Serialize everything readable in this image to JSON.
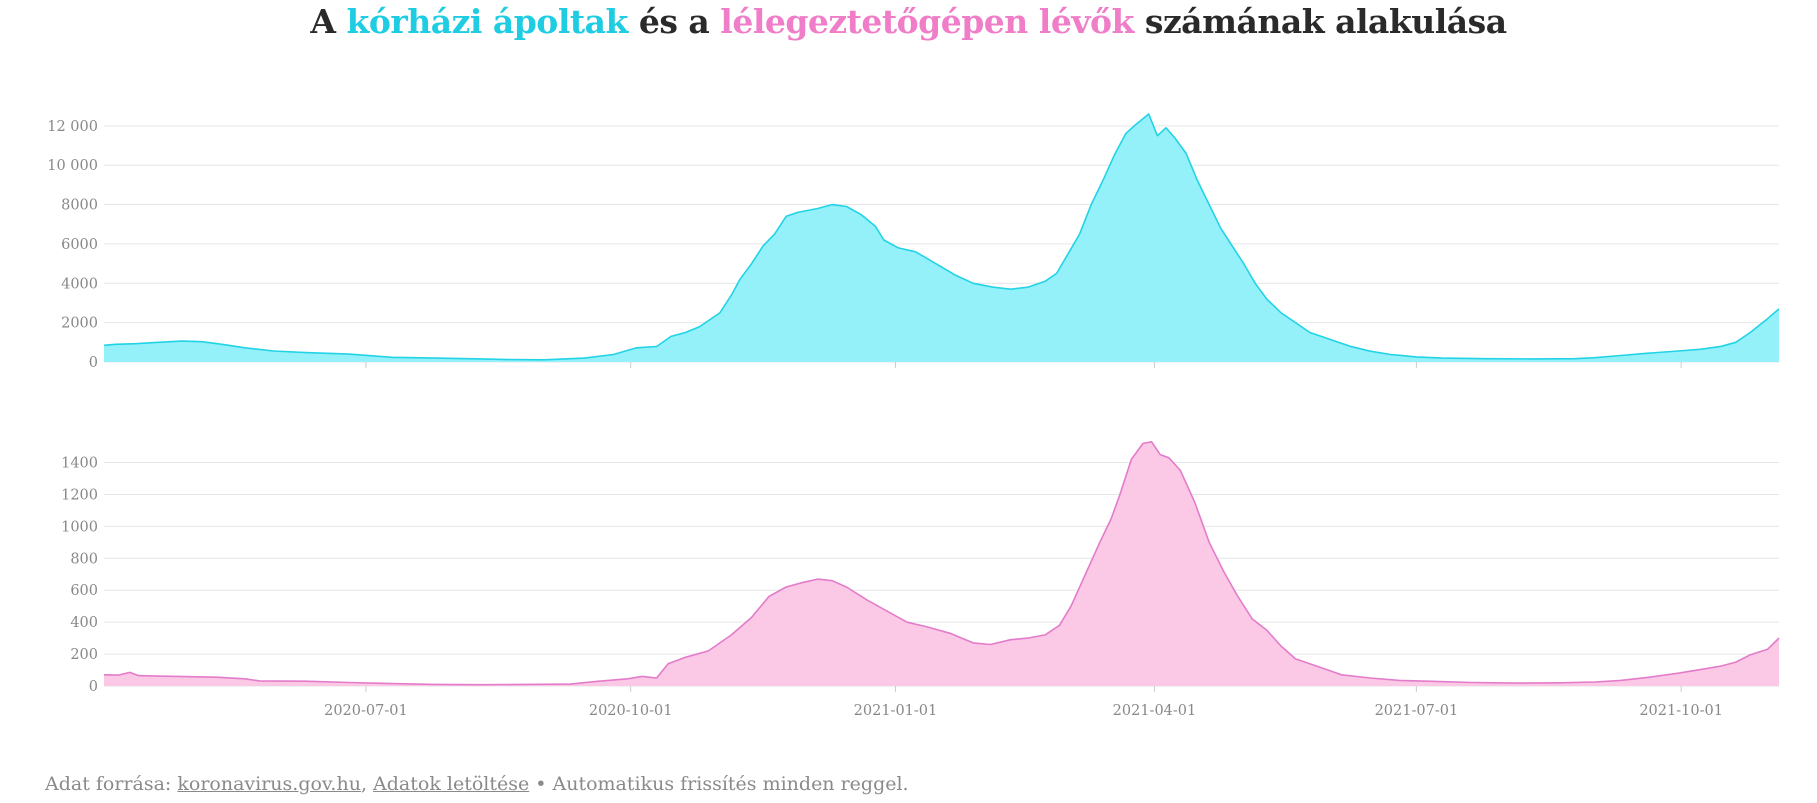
{
  "title": {
    "part1": "A ",
    "highlight1": "kórházi ápoltak",
    "part2": " és a ",
    "highlight2": "lélegeztetőgépen lévők",
    "part3": " számának alakulása"
  },
  "colors": {
    "hospital_line": "#22d3e6",
    "hospital_fill": "#94f1fa",
    "ventilator_line": "#e37cca",
    "ventilator_fill": "#fbc8e6",
    "grid": "#e6e6e6",
    "tick_text": "#888888"
  },
  "footer": {
    "prefix": "Adat forrása: ",
    "source_link": "koronavirus.gov.hu",
    "separator": ", ",
    "download_link": "Adatok letöltése",
    "suffix": " • Automatikus frissítés minden reggel."
  },
  "chart_data": [
    {
      "type": "area",
      "series": [
        {
          "name": "kórházi ápoltak",
          "points": [
            [
              "2020-04-01",
              850
            ],
            [
              "2020-04-05",
              900
            ],
            [
              "2020-04-12",
              930
            ],
            [
              "2020-04-20",
              1000
            ],
            [
              "2020-04-28",
              1060
            ],
            [
              "2020-05-05",
              1030
            ],
            [
              "2020-05-12",
              900
            ],
            [
              "2020-05-20",
              720
            ],
            [
              "2020-05-30",
              560
            ],
            [
              "2020-06-10",
              480
            ],
            [
              "2020-06-25",
              400
            ],
            [
              "2020-07-10",
              240
            ],
            [
              "2020-07-25",
              200
            ],
            [
              "2020-08-10",
              160
            ],
            [
              "2020-08-20",
              120
            ],
            [
              "2020-09-01",
              110
            ],
            [
              "2020-09-15",
              200
            ],
            [
              "2020-09-25",
              380
            ],
            [
              "2020-10-03",
              720
            ],
            [
              "2020-10-10",
              790
            ],
            [
              "2020-10-15",
              1300
            ],
            [
              "2020-10-20",
              1500
            ],
            [
              "2020-10-25",
              1800
            ],
            [
              "2020-11-01",
              2500
            ],
            [
              "2020-11-05",
              3400
            ],
            [
              "2020-11-08",
              4200
            ],
            [
              "2020-11-12",
              5000
            ],
            [
              "2020-11-16",
              5900
            ],
            [
              "2020-11-20",
              6500
            ],
            [
              "2020-11-24",
              7400
            ],
            [
              "2020-11-28",
              7600
            ],
            [
              "2020-12-05",
              7800
            ],
            [
              "2020-12-10",
              8000
            ],
            [
              "2020-12-15",
              7900
            ],
            [
              "2020-12-20",
              7500
            ],
            [
              "2020-12-25",
              6900
            ],
            [
              "2020-12-28",
              6200
            ],
            [
              "2021-01-02",
              5800
            ],
            [
              "2021-01-08",
              5600
            ],
            [
              "2021-01-15",
              5000
            ],
            [
              "2021-01-22",
              4400
            ],
            [
              "2021-01-28",
              4000
            ],
            [
              "2021-02-04",
              3800
            ],
            [
              "2021-02-10",
              3700
            ],
            [
              "2021-02-16",
              3800
            ],
            [
              "2021-02-22",
              4100
            ],
            [
              "2021-02-26",
              4500
            ],
            [
              "2021-03-02",
              5500
            ],
            [
              "2021-03-06",
              6500
            ],
            [
              "2021-03-10",
              8000
            ],
            [
              "2021-03-14",
              9200
            ],
            [
              "2021-03-18",
              10500
            ],
            [
              "2021-03-22",
              11600
            ],
            [
              "2021-03-25",
              12000
            ],
            [
              "2021-03-30",
              12600
            ],
            [
              "2021-04-02",
              11500
            ],
            [
              "2021-04-05",
              11900
            ],
            [
              "2021-04-08",
              11400
            ],
            [
              "2021-04-12",
              10600
            ],
            [
              "2021-04-16",
              9200
            ],
            [
              "2021-04-20",
              8000
            ],
            [
              "2021-04-24",
              6800
            ],
            [
              "2021-04-28",
              5900
            ],
            [
              "2021-05-02",
              5000
            ],
            [
              "2021-05-06",
              4000
            ],
            [
              "2021-05-10",
              3200
            ],
            [
              "2021-05-15",
              2500
            ],
            [
              "2021-05-20",
              2000
            ],
            [
              "2021-05-25",
              1500
            ],
            [
              "2021-06-01",
              1150
            ],
            [
              "2021-06-08",
              800
            ],
            [
              "2021-06-15",
              550
            ],
            [
              "2021-06-22",
              380
            ],
            [
              "2021-07-01",
              260
            ],
            [
              "2021-07-10",
              200
            ],
            [
              "2021-07-25",
              170
            ],
            [
              "2021-08-10",
              160
            ],
            [
              "2021-08-25",
              170
            ],
            [
              "2021-09-01",
              220
            ],
            [
              "2021-09-10",
              330
            ],
            [
              "2021-09-20",
              450
            ],
            [
              "2021-09-30",
              560
            ],
            [
              "2021-10-08",
              650
            ],
            [
              "2021-10-15",
              800
            ],
            [
              "2021-10-20",
              1000
            ],
            [
              "2021-10-25",
              1500
            ],
            [
              "2021-10-31",
              2200
            ],
            [
              "2021-11-04",
              2700
            ]
          ]
        }
      ],
      "ylim": [
        0,
        12500
      ],
      "yticks": [
        0,
        2000,
        4000,
        6000,
        8000,
        10000,
        12000
      ],
      "ytick_labels": [
        "0",
        "2000",
        "4000",
        "6000",
        "8000",
        "10 000",
        "12 000"
      ],
      "xlim": [
        "2020-04-01",
        "2021-11-04"
      ],
      "grid": true,
      "x_axis_labels_shown": false
    },
    {
      "type": "area",
      "series": [
        {
          "name": "lélegeztetőgépen lévők",
          "points": [
            [
              "2020-04-01",
              70
            ],
            [
              "2020-04-06",
              68
            ],
            [
              "2020-04-10",
              85
            ],
            [
              "2020-04-13",
              65
            ],
            [
              "2020-04-20",
              62
            ],
            [
              "2020-05-01",
              58
            ],
            [
              "2020-05-10",
              55
            ],
            [
              "2020-05-20",
              45
            ],
            [
              "2020-05-25",
              32
            ],
            [
              "2020-06-10",
              30
            ],
            [
              "2020-06-25",
              22
            ],
            [
              "2020-07-10",
              15
            ],
            [
              "2020-07-25",
              10
            ],
            [
              "2020-08-10",
              8
            ],
            [
              "2020-08-25",
              10
            ],
            [
              "2020-09-10",
              12
            ],
            [
              "2020-09-20",
              30
            ],
            [
              "2020-09-30",
              45
            ],
            [
              "2020-10-05",
              60
            ],
            [
              "2020-10-10",
              50
            ],
            [
              "2020-10-14",
              140
            ],
            [
              "2020-10-20",
              180
            ],
            [
              "2020-10-28",
              220
            ],
            [
              "2020-11-05",
              320
            ],
            [
              "2020-11-12",
              430
            ],
            [
              "2020-11-18",
              560
            ],
            [
              "2020-11-24",
              620
            ],
            [
              "2020-11-30",
              650
            ],
            [
              "2020-12-05",
              670
            ],
            [
              "2020-12-10",
              660
            ],
            [
              "2020-12-15",
              620
            ],
            [
              "2020-12-22",
              540
            ],
            [
              "2020-12-30",
              460
            ],
            [
              "2021-01-05",
              400
            ],
            [
              "2021-01-12",
              370
            ],
            [
              "2021-01-20",
              330
            ],
            [
              "2021-01-28",
              270
            ],
            [
              "2021-02-03",
              260
            ],
            [
              "2021-02-10",
              290
            ],
            [
              "2021-02-16",
              300
            ],
            [
              "2021-02-22",
              320
            ],
            [
              "2021-02-27",
              380
            ],
            [
              "2021-03-03",
              500
            ],
            [
              "2021-03-08",
              700
            ],
            [
              "2021-03-13",
              900
            ],
            [
              "2021-03-17",
              1050
            ],
            [
              "2021-03-20",
              1200
            ],
            [
              "2021-03-24",
              1420
            ],
            [
              "2021-03-28",
              1520
            ],
            [
              "2021-03-31",
              1530
            ],
            [
              "2021-04-03",
              1450
            ],
            [
              "2021-04-06",
              1430
            ],
            [
              "2021-04-10",
              1350
            ],
            [
              "2021-04-15",
              1150
            ],
            [
              "2021-04-20",
              900
            ],
            [
              "2021-04-25",
              720
            ],
            [
              "2021-04-30",
              560
            ],
            [
              "2021-05-05",
              420
            ],
            [
              "2021-05-10",
              350
            ],
            [
              "2021-05-15",
              250
            ],
            [
              "2021-05-20",
              170
            ],
            [
              "2021-05-28",
              120
            ],
            [
              "2021-06-05",
              70
            ],
            [
              "2021-06-15",
              50
            ],
            [
              "2021-06-25",
              35
            ],
            [
              "2021-07-05",
              30
            ],
            [
              "2021-07-20",
              22
            ],
            [
              "2021-08-05",
              18
            ],
            [
              "2021-08-20",
              20
            ],
            [
              "2021-09-01",
              25
            ],
            [
              "2021-09-10",
              35
            ],
            [
              "2021-09-20",
              55
            ],
            [
              "2021-09-30",
              80
            ],
            [
              "2021-10-05",
              95
            ],
            [
              "2021-10-10",
              110
            ],
            [
              "2021-10-15",
              125
            ],
            [
              "2021-10-20",
              150
            ],
            [
              "2021-10-25",
              195
            ],
            [
              "2021-10-31",
              230
            ],
            [
              "2021-11-04",
              300
            ]
          ]
        }
      ],
      "ylim": [
        0,
        1560
      ],
      "yticks": [
        0,
        200,
        400,
        600,
        800,
        1000,
        1200,
        1400
      ],
      "ytick_labels": [
        "0",
        "200",
        "400",
        "600",
        "800",
        "1000",
        "1200",
        "1400"
      ],
      "xlim": [
        "2020-04-01",
        "2021-11-04"
      ],
      "xticks": [
        "2020-07-01",
        "2020-10-01",
        "2021-01-01",
        "2021-04-01",
        "2021-07-01",
        "2021-10-01"
      ],
      "xtick_labels": [
        "2020-07-01",
        "2020-10-01",
        "2021-01-01",
        "2021-04-01",
        "2021-07-01",
        "2021-10-01"
      ],
      "grid": true
    }
  ]
}
